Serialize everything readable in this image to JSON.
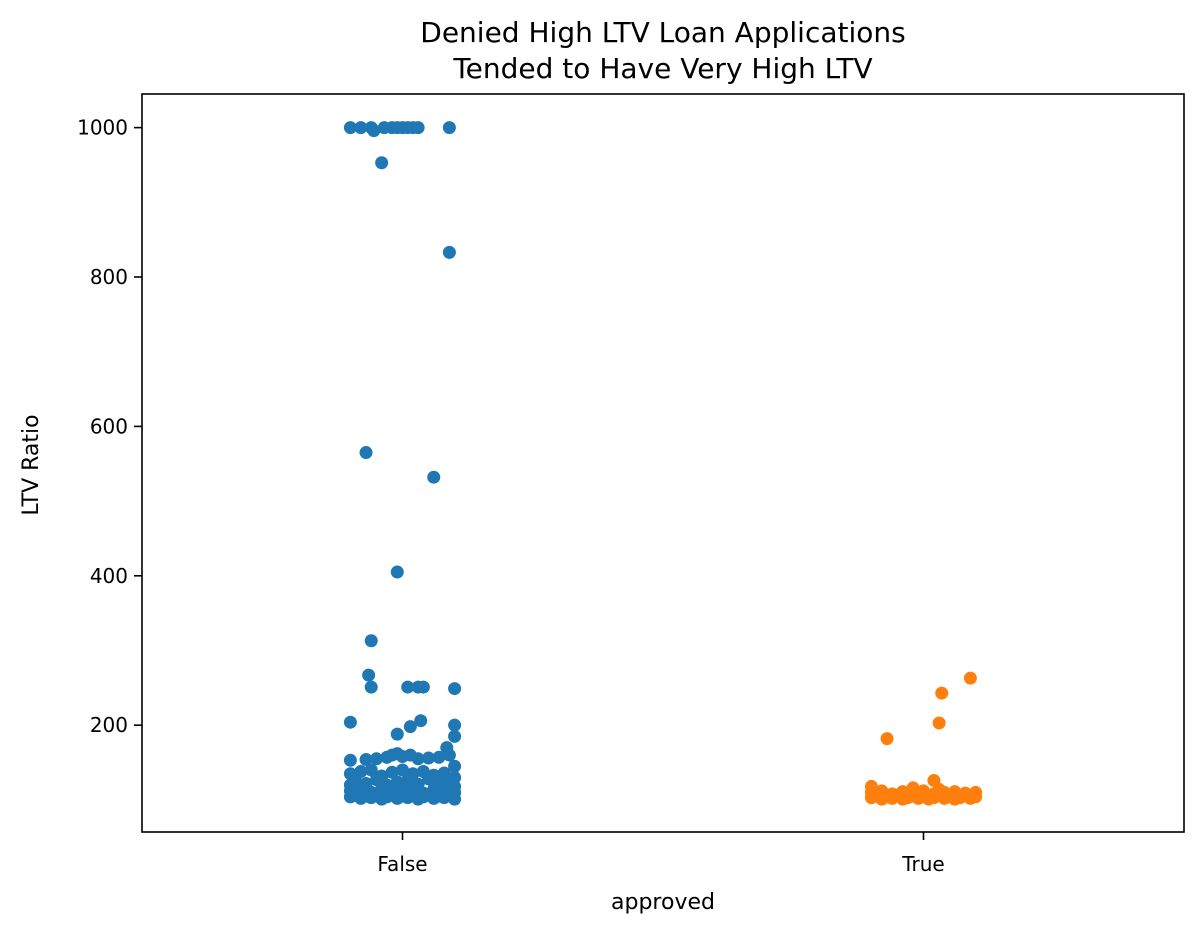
{
  "chart_data": {
    "type": "scatter",
    "title_lines": [
      "Denied High LTV Loan Applications",
      "Tended to Have Very High LTV"
    ],
    "xlabel": "approved",
    "ylabel": "LTV Ratio",
    "categories": [
      "False",
      "True"
    ],
    "ylim": [
      57,
      1045
    ],
    "yticks": [
      200,
      400,
      600,
      800,
      1000
    ],
    "grid": false,
    "colors": {
      "False": "#1f77b4",
      "True": "#ff7f0e"
    },
    "series": [
      {
        "category": "False",
        "points": [
          [
            -0.1,
            1000
          ],
          [
            -0.08,
            1000
          ],
          [
            -0.06,
            1000
          ],
          [
            -0.055,
            996
          ],
          [
            -0.04,
            953
          ],
          [
            -0.035,
            1000
          ],
          [
            -0.02,
            1000
          ],
          [
            -0.01,
            1000
          ],
          [
            0.0,
            1000
          ],
          [
            0.01,
            1000
          ],
          [
            0.02,
            1000
          ],
          [
            0.03,
            1000
          ],
          [
            0.09,
            1000
          ],
          [
            0.09,
            833
          ],
          [
            -0.07,
            565
          ],
          [
            0.06,
            532
          ],
          [
            -0.01,
            405
          ],
          [
            -0.06,
            313
          ],
          [
            -0.065,
            267
          ],
          [
            -0.06,
            251
          ],
          [
            0.01,
            251
          ],
          [
            0.03,
            251
          ],
          [
            0.04,
            251
          ],
          [
            0.1,
            249
          ],
          [
            -0.1,
            204
          ],
          [
            0.1,
            200
          ],
          [
            0.015,
            198
          ],
          [
            0.035,
            206
          ],
          [
            0.1,
            185
          ],
          [
            -0.01,
            188
          ],
          [
            0.085,
            170
          ],
          [
            -0.1,
            153
          ],
          [
            -0.07,
            154
          ],
          [
            -0.05,
            155
          ],
          [
            -0.03,
            157
          ],
          [
            -0.02,
            160
          ],
          [
            -0.01,
            162
          ],
          [
            0.0,
            158
          ],
          [
            0.015,
            160
          ],
          [
            0.03,
            155
          ],
          [
            0.05,
            156
          ],
          [
            0.07,
            157
          ],
          [
            0.09,
            160
          ],
          [
            0.1,
            145
          ],
          [
            -0.1,
            135
          ],
          [
            -0.08,
            138
          ],
          [
            -0.06,
            140
          ],
          [
            -0.04,
            132
          ],
          [
            -0.02,
            137
          ],
          [
            0.0,
            140
          ],
          [
            0.02,
            135
          ],
          [
            0.04,
            138
          ],
          [
            0.06,
            133
          ],
          [
            0.08,
            136
          ],
          [
            0.1,
            130
          ],
          [
            -0.1,
            120
          ],
          [
            -0.09,
            125
          ],
          [
            -0.07,
            122
          ],
          [
            -0.05,
            127
          ],
          [
            -0.03,
            120
          ],
          [
            -0.01,
            124
          ],
          [
            0.01,
            126
          ],
          [
            0.03,
            121
          ],
          [
            0.05,
            128
          ],
          [
            0.07,
            123
          ],
          [
            0.09,
            125
          ],
          [
            0.1,
            118
          ],
          [
            -0.1,
            112
          ],
          [
            -0.08,
            114
          ],
          [
            -0.06,
            110
          ],
          [
            -0.04,
            115
          ],
          [
            -0.02,
            111
          ],
          [
            0.0,
            116
          ],
          [
            0.02,
            113
          ],
          [
            0.04,
            109
          ],
          [
            0.06,
            114
          ],
          [
            0.08,
            112
          ],
          [
            0.1,
            110
          ],
          [
            -0.1,
            104
          ],
          [
            -0.09,
            106
          ],
          [
            -0.08,
            102
          ],
          [
            -0.07,
            105
          ],
          [
            -0.06,
            103
          ],
          [
            -0.05,
            107
          ],
          [
            -0.04,
            101
          ],
          [
            -0.03,
            104
          ],
          [
            -0.02,
            106
          ],
          [
            -0.01,
            102
          ],
          [
            0.0,
            105
          ],
          [
            0.01,
            103
          ],
          [
            0.02,
            107
          ],
          [
            0.03,
            101
          ],
          [
            0.04,
            104
          ],
          [
            0.05,
            106
          ],
          [
            0.06,
            102
          ],
          [
            0.07,
            105
          ],
          [
            0.08,
            103
          ],
          [
            0.09,
            107
          ],
          [
            0.1,
            101
          ]
        ]
      },
      {
        "category": "True",
        "points": [
          [
            0.09,
            263
          ],
          [
            0.035,
            243
          ],
          [
            0.03,
            203
          ],
          [
            -0.07,
            182
          ],
          [
            0.02,
            126
          ],
          [
            -0.1,
            118
          ],
          [
            -0.02,
            116
          ],
          [
            0.03,
            114
          ],
          [
            -0.1,
            110
          ],
          [
            -0.08,
            112
          ],
          [
            -0.06,
            108
          ],
          [
            -0.04,
            111
          ],
          [
            -0.02,
            109
          ],
          [
            0.0,
            112
          ],
          [
            0.02,
            108
          ],
          [
            0.04,
            110
          ],
          [
            0.06,
            111
          ],
          [
            0.08,
            109
          ],
          [
            0.1,
            110
          ],
          [
            -0.1,
            103
          ],
          [
            -0.09,
            105
          ],
          [
            -0.08,
            101
          ],
          [
            -0.07,
            104
          ],
          [
            -0.06,
            102
          ],
          [
            -0.05,
            106
          ],
          [
            -0.04,
            101
          ],
          [
            -0.03,
            103
          ],
          [
            -0.02,
            105
          ],
          [
            -0.01,
            102
          ],
          [
            0.0,
            104
          ],
          [
            0.01,
            101
          ],
          [
            0.02,
            103
          ],
          [
            0.03,
            106
          ],
          [
            0.04,
            102
          ],
          [
            0.05,
            104
          ],
          [
            0.06,
            101
          ],
          [
            0.07,
            103
          ],
          [
            0.08,
            105
          ],
          [
            0.09,
            102
          ],
          [
            0.1,
            104
          ]
        ]
      }
    ]
  }
}
